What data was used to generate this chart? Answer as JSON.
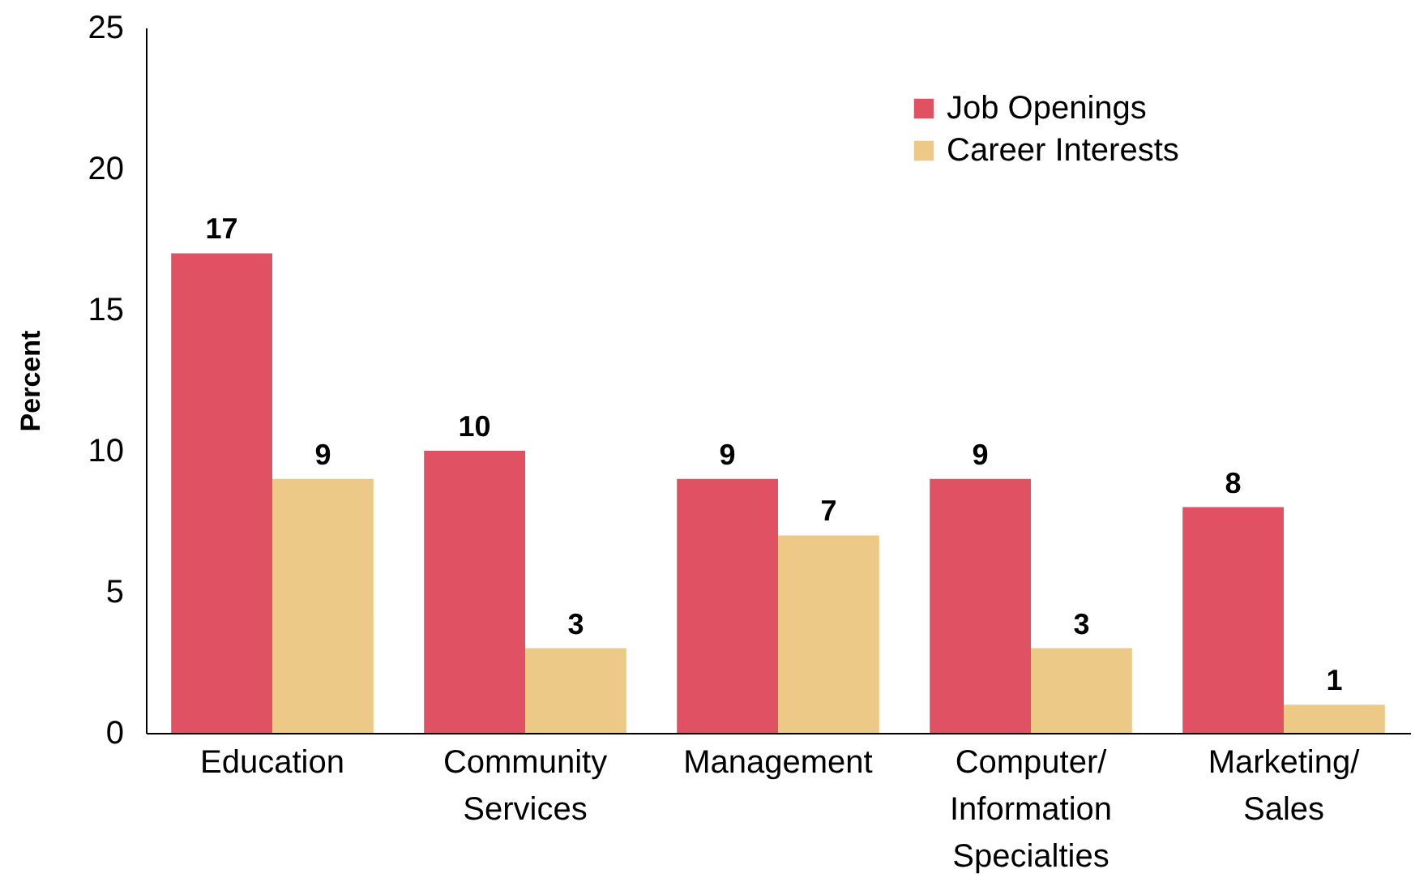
{
  "chart_data": {
    "type": "bar",
    "ylabel": "Percent",
    "categories": [
      "Education",
      "Community Services",
      "Management",
      "Computer/Information Specialties",
      "Marketing/Sales"
    ],
    "series": [
      {
        "name": "Job Openings",
        "color": "#e05263",
        "values": [
          17,
          10,
          9,
          9,
          8
        ]
      },
      {
        "name": "Career Interests",
        "color": "#ecc986",
        "values": [
          9,
          3,
          7,
          3,
          1
        ]
      }
    ],
    "ylim": [
      0,
      25
    ],
    "yticks": [
      0,
      5,
      10,
      15,
      20,
      25
    ],
    "grid": false,
    "legend": "top right",
    "data_labels": true
  }
}
